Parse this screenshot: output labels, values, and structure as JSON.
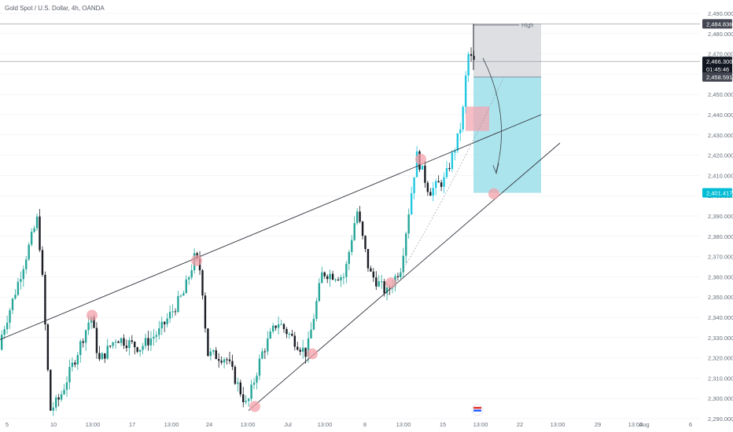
{
  "header": {
    "title": "Gold Spot / U.S. Dollar, 4h, OANDA"
  },
  "price_tags": {
    "high": "2,484.836",
    "current": "2,466.300",
    "countdown": "01:45:46",
    "entry": "2,458.591",
    "target": "2,401.417"
  },
  "annotation": {
    "high_label": "High"
  },
  "colors": {
    "up": "#26a69a",
    "up_highlight": "#22c7e0",
    "down": "#1a1d24",
    "target_zone": "#9ddfea",
    "stop_zone": "#d7d9de",
    "fvg": "#f4a7b0",
    "marker": "#f3a0a8",
    "trendline": "#2e323b",
    "grid": "#e9ecf1",
    "target_tag": "#00bcd4",
    "dark_tag": "#131722"
  },
  "chart_data": {
    "type": "candlestick",
    "symbol": "XAUUSD",
    "timeframe": "4h",
    "y_range": [
      2287,
      2494
    ],
    "y_ticks": [
      "2,490.000",
      "2,480.000",
      "2,470.000",
      "2,460.000",
      "2,450.000",
      "2,440.000",
      "2,430.000",
      "2,420.000",
      "2,410.000",
      "2,400.000",
      "2,390.000",
      "2,380.000",
      "2,370.000",
      "2,360.000",
      "2,350.000",
      "2,340.000",
      "2,330.000",
      "2,320.000",
      "2,310.000",
      "2,300.000",
      "2,290.000"
    ],
    "x_ticks": [
      "5",
      "10",
      "13:00",
      "17",
      "13:00",
      "24",
      "13:00",
      "Jul",
      "13:00",
      "8",
      "13:00",
      "15",
      "13:00",
      "22",
      "13:00",
      "29",
      "13:00",
      "Aug",
      "6"
    ],
    "series": [
      {
        "period": "Jun 3-5",
        "open": 2326,
        "high": 2330,
        "low": 2320,
        "close": 2328
      },
      {
        "period": "Jun 5-7",
        "open": 2328,
        "high": 2389,
        "low": 2326,
        "close": 2386
      },
      {
        "period": "Jun 7",
        "open": 2386,
        "high": 2388,
        "low": 2293,
        "close": 2294
      },
      {
        "period": "Jun 10-14",
        "open": 2294,
        "high": 2342,
        "low": 2294,
        "close": 2332
      },
      {
        "period": "Jun 17-21",
        "open": 2332,
        "high": 2371,
        "low": 2315,
        "close": 2365
      },
      {
        "period": "Jun 21",
        "open": 2365,
        "high": 2368,
        "low": 2316,
        "close": 2322
      },
      {
        "period": "Jun 24-28",
        "open": 2322,
        "high": 2335,
        "low": 2296,
        "close": 2326
      },
      {
        "period": "Jul 1-5",
        "open": 2326,
        "high": 2394,
        "low": 2320,
        "close": 2390
      },
      {
        "period": "Jul 8-12",
        "open": 2390,
        "high": 2422,
        "low": 2351,
        "close": 2413
      },
      {
        "period": "Jul 15-17",
        "open": 2413,
        "high": 2484.836,
        "low": 2406,
        "close": 2466.3
      }
    ],
    "trendlines": [
      {
        "name": "upper channel",
        "from": {
          "date": "Jun 3",
          "price": 2329
        },
        "to": {
          "date": "Jul 20",
          "price": 2440
        }
      },
      {
        "name": "support trendline",
        "from": {
          "date": "Jun 27",
          "price": 2294
        },
        "to": {
          "date": "Jul 23",
          "price": 2426
        }
      }
    ],
    "position": {
      "direction": "short",
      "entry": 2458.591,
      "stop": 2484.836,
      "target": 2401.417
    },
    "fvg_zone": [
      2432,
      2444
    ],
    "touch_points": [
      {
        "date": "Jun 13",
        "price": 2341
      },
      {
        "date": "Jun 21",
        "price": 2368
      },
      {
        "date": "Jun 27",
        "price": 2296
      },
      {
        "date": "Jul 2",
        "price": 2322
      },
      {
        "date": "Jul 9",
        "price": 2357
      },
      {
        "date": "Jul 12",
        "price": 2418
      },
      {
        "date": "Jul 19",
        "price": 2401
      }
    ],
    "horizontal_lines": [
      2484.836,
      2466.3
    ]
  }
}
